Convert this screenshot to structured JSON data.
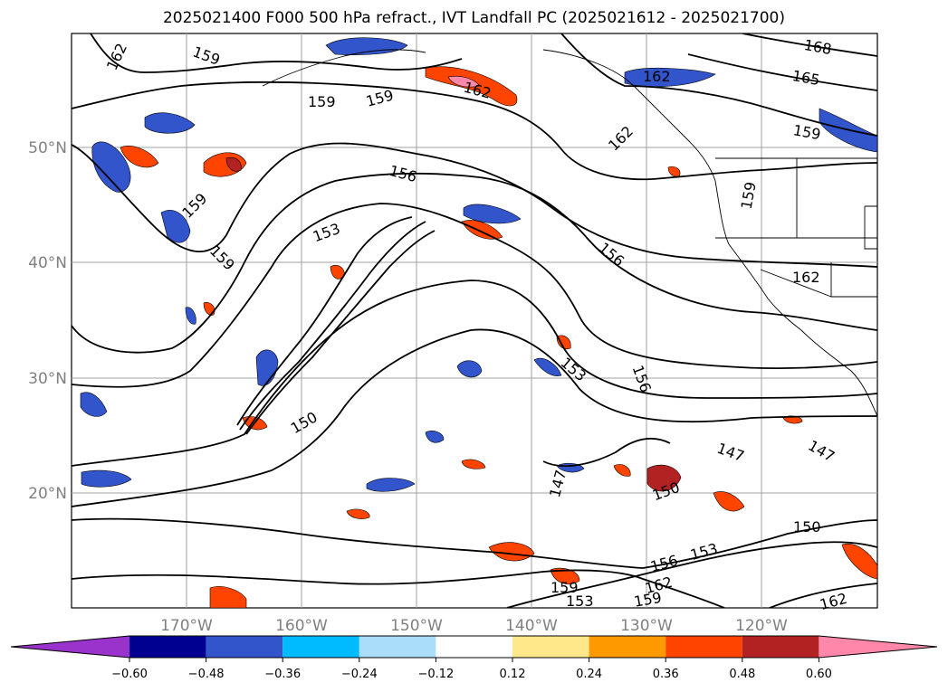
{
  "title": "2025021400 F000 500 hPa refract., IVT Landfall PC (2025021612 - 2025021700)",
  "lat_labels": [
    "50°N",
    "40°N",
    "30°N",
    "20°N"
  ],
  "lon_labels": [
    "170°W",
    "160°W",
    "150°W",
    "140°W",
    "130°W",
    "120°W"
  ],
  "contour_labels": [
    "162",
    "159",
    "159",
    "159",
    "162",
    "162",
    "165",
    "168",
    "162",
    "159",
    "156",
    "153",
    "159",
    "159",
    "156",
    "159",
    "162",
    "150",
    "153",
    "156",
    "147",
    "147",
    "147",
    "150",
    "150",
    "153",
    "156",
    "159",
    "153",
    "159",
    "162",
    "162"
  ],
  "colorbar": {
    "ticks": [
      "−0.60",
      "−0.48",
      "−0.36",
      "−0.24",
      "−0.12",
      "0.12",
      "0.24",
      "0.36",
      "0.48",
      "0.60"
    ],
    "colors": [
      "#9933cc",
      "#000090",
      "#3355cc",
      "#00bbff",
      "#aaddf8",
      "#ffffff",
      "#ffe88a",
      "#ff9900",
      "#ff4400",
      "#b22222",
      "#ff88aa"
    ]
  },
  "colors": {
    "contour": "#000000",
    "grid": "#a0a0a0",
    "coast": "#000000"
  }
}
